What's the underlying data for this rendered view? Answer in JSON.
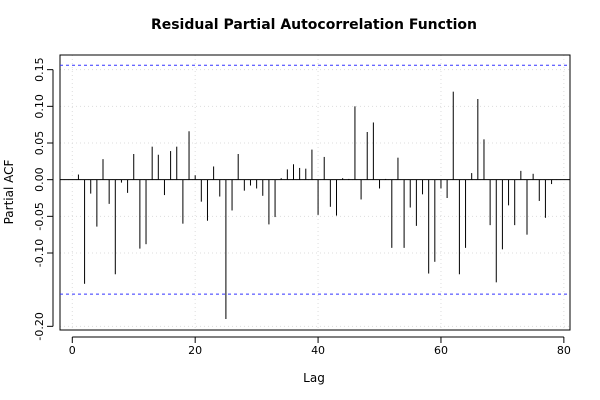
{
  "chart_data": {
    "type": "bar",
    "title": "Residual Partial Autocorrelation Function",
    "xlabel": "Lag",
    "ylabel": "Partial ACF",
    "xlim": [
      -2,
      81
    ],
    "ylim": [
      -0.205,
      0.17
    ],
    "x_ticks": [
      0,
      20,
      40,
      60,
      80
    ],
    "y_ticks": [
      -0.2,
      -0.1,
      -0.05,
      0.0,
      0.05,
      0.1,
      0.15
    ],
    "y_tick_labels": [
      "-0.20",
      "-0.10",
      "-0.05",
      "0.00",
      "0.05",
      "0.10",
      "0.15"
    ],
    "confidence_bounds": [
      0.156,
      -0.156
    ],
    "grid": true,
    "x": [
      1,
      2,
      3,
      4,
      5,
      6,
      7,
      8,
      9,
      10,
      11,
      12,
      13,
      14,
      15,
      16,
      17,
      18,
      19,
      20,
      21,
      22,
      23,
      24,
      25,
      26,
      27,
      28,
      29,
      30,
      31,
      32,
      33,
      34,
      35,
      36,
      37,
      38,
      39,
      40,
      41,
      42,
      43,
      44,
      45,
      46,
      47,
      48,
      49,
      50,
      51,
      52,
      53,
      54,
      55,
      56,
      57,
      58,
      59,
      60,
      61,
      62,
      63,
      64,
      65,
      66,
      67,
      68,
      69,
      70,
      71,
      72,
      73,
      74,
      75,
      76,
      77,
      78
    ],
    "values": [
      0.007,
      -0.142,
      -0.019,
      -0.064,
      0.028,
      -0.033,
      -0.129,
      -0.004,
      -0.018,
      0.035,
      -0.094,
      -0.088,
      0.045,
      0.034,
      -0.021,
      0.039,
      0.045,
      -0.06,
      0.066,
      0.006,
      -0.03,
      -0.056,
      0.018,
      -0.023,
      -0.19,
      -0.042,
      0.035,
      -0.015,
      -0.008,
      -0.012,
      -0.022,
      -0.061,
      -0.051,
      0.002,
      0.014,
      0.021,
      0.016,
      0.015,
      0.041,
      -0.048,
      0.031,
      -0.037,
      -0.049,
      0.002,
      0.001,
      0.1,
      -0.027,
      0.065,
      0.078,
      -0.012,
      0.001,
      -0.093,
      0.03,
      -0.093,
      -0.038,
      -0.063,
      -0.02,
      -0.128,
      -0.112,
      -0.012,
      -0.025,
      0.12,
      -0.129,
      -0.093,
      0.009,
      0.11,
      0.055,
      -0.062,
      -0.14,
      -0.095,
      -0.035,
      -0.062,
      0.012,
      -0.075,
      0.008,
      -0.029,
      -0.052,
      -0.006
    ]
  }
}
